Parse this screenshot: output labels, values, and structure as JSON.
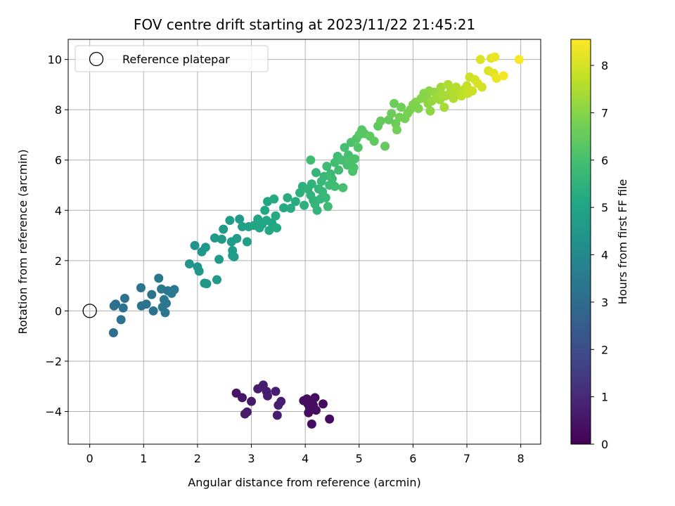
{
  "chart_data": {
    "type": "scatter",
    "title": "FOV centre drift starting at 2023/11/22 21:45:21",
    "xlabel": "Angular distance from reference (arcmin)",
    "ylabel": "Rotation from reference (arcmin)",
    "colorbar_label": "Hours from first FF file",
    "xlim": [
      -0.4,
      8.37
    ],
    "ylim": [
      -5.3,
      10.8
    ],
    "xticks": [
      0,
      1,
      2,
      3,
      4,
      5,
      6,
      7,
      8
    ],
    "yticks": [
      -4,
      -2,
      0,
      2,
      4,
      6,
      8,
      10
    ],
    "color_ticks": [
      0,
      1,
      2,
      3,
      4,
      5,
      6,
      7,
      8
    ],
    "color_range": [
      0,
      8.55
    ],
    "colormap": "viridis",
    "grid": true,
    "legend": {
      "placement": "top-left",
      "entries": [
        "Reference platepar"
      ]
    },
    "reference_point": {
      "x": 0,
      "y": 0
    },
    "points": [
      [
        2.72,
        -3.27,
        0.5
      ],
      [
        2.83,
        -3.45,
        0.5
      ],
      [
        2.88,
        -4.1,
        0.6
      ],
      [
        2.92,
        -4.02,
        0.6
      ],
      [
        3.0,
        -3.6,
        0.6
      ],
      [
        3.12,
        -3.1,
        0.7
      ],
      [
        3.22,
        -2.95,
        0.7
      ],
      [
        3.28,
        -3.2,
        0.7
      ],
      [
        3.3,
        -3.38,
        0.7
      ],
      [
        3.45,
        -3.2,
        0.7
      ],
      [
        3.48,
        -4.15,
        0.7
      ],
      [
        3.5,
        -3.75,
        0.7
      ],
      [
        3.55,
        -3.6,
        0.7
      ],
      [
        3.97,
        -3.57,
        0.3
      ],
      [
        4.03,
        -3.5,
        0.3
      ],
      [
        4.05,
        -3.7,
        0.3
      ],
      [
        4.08,
        -3.83,
        0.3
      ],
      [
        4.06,
        -4.05,
        0.3
      ],
      [
        4.12,
        -3.6,
        0.3
      ],
      [
        4.15,
        -3.75,
        0.3
      ],
      [
        4.12,
        -4.5,
        0.3
      ],
      [
        4.18,
        -3.45,
        0.3
      ],
      [
        4.2,
        -3.95,
        0.3
      ],
      [
        4.33,
        -3.7,
        0.3
      ],
      [
        4.45,
        -4.3,
        0.3
      ],
      [
        0.44,
        -0.87,
        3.1
      ],
      [
        0.45,
        0.2,
        3.1
      ],
      [
        0.48,
        0.27,
        3.1
      ],
      [
        0.58,
        -0.35,
        3.2
      ],
      [
        0.62,
        0.12,
        3.2
      ],
      [
        0.65,
        0.5,
        3.2
      ],
      [
        0.95,
        0.92,
        3.3
      ],
      [
        0.96,
        0.2,
        3.3
      ],
      [
        1.05,
        0.27,
        3.3
      ],
      [
        1.15,
        0.65,
        3.3
      ],
      [
        1.18,
        0.0,
        3.3
      ],
      [
        1.28,
        1.3,
        3.4
      ],
      [
        1.33,
        0.87,
        3.4
      ],
      [
        1.35,
        0.15,
        3.4
      ],
      [
        1.38,
        0.45,
        3.4
      ],
      [
        1.4,
        -0.07,
        3.4
      ],
      [
        1.42,
        0.3,
        3.4
      ],
      [
        1.45,
        0.8,
        3.4
      ],
      [
        1.52,
        0.7,
        3.5
      ],
      [
        1.57,
        0.85,
        3.5
      ],
      [
        1.85,
        1.87,
        4.4
      ],
      [
        1.95,
        2.6,
        4.4
      ],
      [
        2.0,
        1.75,
        4.4
      ],
      [
        2.03,
        1.58,
        4.5
      ],
      [
        2.08,
        2.35,
        4.5
      ],
      [
        2.13,
        1.1,
        4.5
      ],
      [
        2.17,
        1.08,
        4.5
      ],
      [
        2.15,
        2.53,
        4.5
      ],
      [
        2.32,
        2.9,
        4.6
      ],
      [
        2.36,
        1.24,
        4.6
      ],
      [
        2.4,
        2.05,
        4.6
      ],
      [
        2.45,
        2.85,
        4.6
      ],
      [
        2.48,
        3.25,
        4.6
      ],
      [
        2.6,
        3.6,
        4.7
      ],
      [
        2.63,
        2.75,
        4.7
      ],
      [
        2.65,
        2.2,
        4.7
      ],
      [
        2.65,
        2.4,
        4.7
      ],
      [
        2.68,
        2.15,
        4.7
      ],
      [
        2.73,
        2.88,
        4.7
      ],
      [
        2.78,
        3.65,
        4.7
      ],
      [
        2.83,
        3.35,
        4.8
      ],
      [
        2.92,
        2.75,
        4.8
      ],
      [
        2.95,
        3.35,
        4.8
      ],
      [
        3.05,
        3.4,
        5.0
      ],
      [
        3.12,
        3.65,
        5.0
      ],
      [
        3.15,
        3.3,
        5.0
      ],
      [
        3.2,
        3.45,
        5.0
      ],
      [
        3.25,
        4.0,
        5.1
      ],
      [
        3.28,
        3.6,
        5.1
      ],
      [
        3.3,
        4.35,
        5.1
      ],
      [
        3.33,
        3.2,
        5.1
      ],
      [
        3.38,
        3.5,
        5.1
      ],
      [
        3.42,
        3.35,
        5.1
      ],
      [
        3.45,
        3.78,
        5.2
      ],
      [
        3.47,
        3.3,
        5.2
      ],
      [
        3.42,
        4.45,
        5.2
      ],
      [
        3.6,
        4.1,
        5.2
      ],
      [
        3.67,
        4.5,
        5.3
      ],
      [
        3.73,
        4.08,
        5.3
      ],
      [
        3.82,
        4.35,
        5.3
      ],
      [
        3.9,
        4.7,
        5.4
      ],
      [
        3.95,
        4.95,
        5.4
      ],
      [
        3.98,
        4.2,
        5.4
      ],
      [
        4.05,
        4.85,
        5.5
      ],
      [
        4.1,
        4.6,
        5.5
      ],
      [
        4.12,
        5.05,
        5.5
      ],
      [
        4.15,
        4.4,
        5.5
      ],
      [
        4.18,
        4.25,
        5.6
      ],
      [
        4.2,
        5.5,
        5.6
      ],
      [
        4.22,
        4.0,
        5.6
      ],
      [
        4.25,
        4.85,
        5.6
      ],
      [
        4.28,
        4.45,
        5.6
      ],
      [
        4.3,
        5.15,
        5.7
      ],
      [
        4.32,
        4.75,
        5.7
      ],
      [
        4.35,
        5.35,
        5.7
      ],
      [
        4.38,
        4.5,
        5.7
      ],
      [
        4.4,
        5.75,
        5.8
      ],
      [
        4.42,
        4.15,
        5.8
      ],
      [
        4.45,
        5.0,
        5.8
      ],
      [
        4.47,
        5.45,
        5.8
      ],
      [
        4.5,
        5.25,
        5.8
      ],
      [
        4.55,
        4.95,
        5.9
      ],
      [
        4.1,
        6.0,
        5.9
      ],
      [
        4.55,
        5.9,
        5.9
      ],
      [
        4.6,
        6.15,
        5.9
      ],
      [
        4.62,
        5.6,
        5.9
      ],
      [
        4.68,
        6.0,
        6.0
      ],
      [
        4.7,
        4.9,
        6.0
      ],
      [
        4.73,
        6.5,
        6.0
      ],
      [
        4.78,
        5.8,
        6.0
      ],
      [
        4.8,
        6.2,
        6.0
      ],
      [
        4.82,
        5.95,
        6.1
      ],
      [
        4.85,
        6.7,
        6.1
      ],
      [
        4.88,
        5.55,
        6.1
      ],
      [
        4.9,
        5.7,
        6.1
      ],
      [
        4.92,
        6.05,
        6.1
      ],
      [
        4.95,
        6.85,
        6.2
      ],
      [
        4.98,
        6.5,
        6.2
      ],
      [
        5.0,
        7.0,
        6.3
      ],
      [
        5.05,
        7.2,
        6.3
      ],
      [
        5.1,
        7.05,
        6.3
      ],
      [
        5.2,
        6.95,
        6.4
      ],
      [
        5.28,
        6.75,
        6.4
      ],
      [
        5.35,
        7.35,
        6.4
      ],
      [
        5.4,
        7.55,
        6.5
      ],
      [
        5.48,
        6.55,
        6.5
      ],
      [
        5.55,
        7.6,
        6.5
      ],
      [
        5.6,
        7.85,
        6.6
      ],
      [
        5.65,
        8.25,
        6.6
      ],
      [
        5.68,
        7.45,
        6.6
      ],
      [
        5.7,
        7.2,
        6.7
      ],
      [
        5.75,
        7.7,
        6.7
      ],
      [
        5.78,
        8.1,
        6.7
      ],
      [
        5.85,
        7.65,
        6.7
      ],
      [
        5.9,
        7.85,
        6.8
      ],
      [
        5.95,
        8.0,
        6.8
      ],
      [
        6.0,
        8.2,
        6.9
      ],
      [
        6.05,
        8.3,
        6.9
      ],
      [
        6.1,
        8.05,
        6.9
      ],
      [
        6.15,
        8.45,
        7.0
      ],
      [
        6.2,
        8.65,
        7.0
      ],
      [
        6.25,
        8.55,
        7.0
      ],
      [
        6.28,
        8.25,
        7.1
      ],
      [
        6.3,
        8.75,
        7.1
      ],
      [
        6.32,
        7.95,
        7.1
      ],
      [
        6.35,
        8.35,
        7.2
      ],
      [
        6.4,
        8.7,
        7.2
      ],
      [
        6.45,
        8.5,
        7.3
      ],
      [
        6.5,
        8.4,
        7.3
      ],
      [
        6.52,
        8.9,
        7.3
      ],
      [
        6.55,
        8.6,
        7.4
      ],
      [
        6.58,
        8.1,
        7.4
      ],
      [
        6.6,
        8.55,
        7.4
      ],
      [
        6.65,
        9.0,
        7.5
      ],
      [
        6.7,
        8.75,
        7.5
      ],
      [
        6.75,
        8.45,
        7.5
      ],
      [
        6.8,
        8.9,
        7.6
      ],
      [
        6.85,
        8.7,
        7.6
      ],
      [
        6.9,
        8.55,
        7.7
      ],
      [
        6.95,
        8.8,
        7.7
      ],
      [
        7.0,
        8.95,
        7.8
      ],
      [
        7.02,
        8.65,
        7.8
      ],
      [
        7.05,
        9.3,
        7.9
      ],
      [
        7.1,
        8.75,
        7.9
      ],
      [
        7.15,
        9.2,
        8.0
      ],
      [
        7.2,
        9.05,
        8.0
      ],
      [
        7.28,
        8.9,
        8.0
      ],
      [
        7.25,
        10.0,
        8.1
      ],
      [
        7.4,
        9.55,
        8.1
      ],
      [
        7.45,
        10.05,
        8.2
      ],
      [
        7.5,
        9.45,
        8.2
      ],
      [
        7.52,
        10.1,
        8.3
      ],
      [
        7.55,
        9.25,
        8.3
      ],
      [
        7.68,
        9.35,
        8.4
      ],
      [
        7.97,
        10.0,
        8.5
      ]
    ]
  }
}
